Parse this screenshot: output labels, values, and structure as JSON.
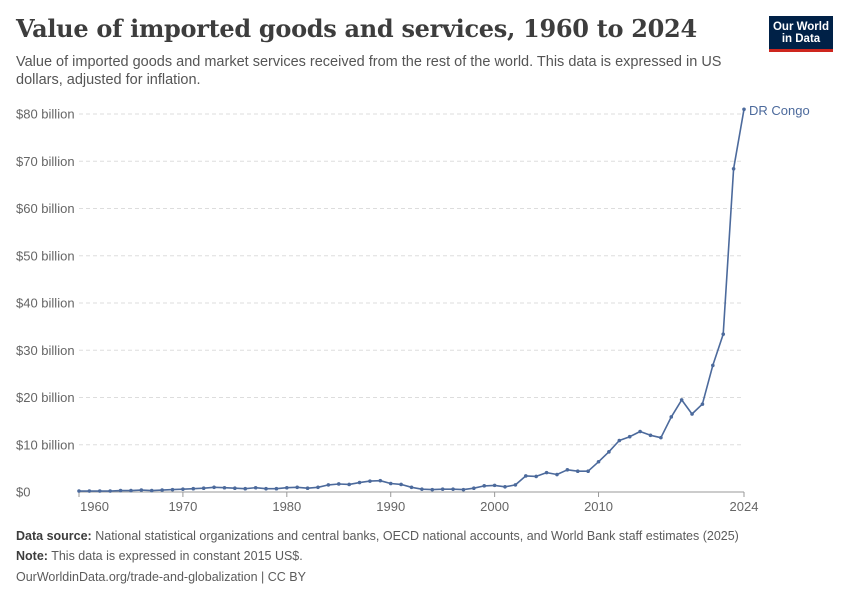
{
  "header": {
    "title": "Value of imported goods and services, 1960 to 2024",
    "subtitle": "Value of imported goods and market services received from the rest of the world. This data is expressed in US dollars, adjusted for inflation.",
    "logo_line1": "Our World",
    "logo_line2": "in Data"
  },
  "footer": {
    "source_label": "Data source:",
    "source_text": "National statistical organizations and central banks, OECD national accounts, and World Bank staff estimates (2025)",
    "note_label": "Note:",
    "note_text": "This data is expressed in constant 2015 US$.",
    "url_text": "OurWorldinData.org/trade-and-globalization | CC BY"
  },
  "colors": {
    "series": "#4c6a9c",
    "grid": "#dddddd",
    "axis_text": "#666666",
    "logo_bg": "#002147",
    "logo_accent": "#ce261e"
  },
  "chart_data": {
    "type": "line",
    "xlim": [
      1960,
      2024
    ],
    "ylim": [
      0,
      80
    ],
    "y_unit": "billion",
    "y_ticks": [
      0,
      10,
      20,
      30,
      40,
      50,
      60,
      70,
      80
    ],
    "y_tick_labels": [
      "$0",
      "$10 billion",
      "$20 billion",
      "$30 billion",
      "$40 billion",
      "$50 billion",
      "$60 billion",
      "$70 billion",
      "$80 billion"
    ],
    "x_ticks": [
      1960,
      1970,
      1980,
      1990,
      2000,
      2010,
      2024
    ],
    "x_tick_labels": [
      "1960",
      "1970",
      "1980",
      "1990",
      "2000",
      "2010",
      "2024"
    ],
    "grid": "horizontal dashed",
    "series": [
      {
        "name": "DR Congo",
        "x": [
          1960,
          1961,
          1962,
          1963,
          1964,
          1965,
          1966,
          1967,
          1968,
          1969,
          1970,
          1971,
          1972,
          1973,
          1974,
          1975,
          1976,
          1977,
          1978,
          1979,
          1980,
          1981,
          1982,
          1983,
          1984,
          1985,
          1986,
          1987,
          1988,
          1989,
          1990,
          1991,
          1992,
          1993,
          1994,
          1995,
          1996,
          1997,
          1998,
          1999,
          2000,
          2001,
          2002,
          2003,
          2004,
          2005,
          2006,
          2007,
          2008,
          2009,
          2010,
          2011,
          2012,
          2013,
          2014,
          2015,
          2016,
          2017,
          2018,
          2019,
          2020,
          2021,
          2022,
          2023,
          2024
        ],
        "values": [
          0.2,
          0.2,
          0.2,
          0.2,
          0.3,
          0.3,
          0.4,
          0.3,
          0.4,
          0.5,
          0.6,
          0.7,
          0.8,
          1.0,
          0.9,
          0.8,
          0.7,
          0.9,
          0.7,
          0.7,
          0.9,
          1.0,
          0.8,
          1.0,
          1.5,
          1.7,
          1.6,
          2.0,
          2.3,
          2.4,
          1.8,
          1.6,
          1.0,
          0.6,
          0.5,
          0.6,
          0.6,
          0.5,
          0.8,
          1.3,
          1.4,
          1.1,
          1.5,
          3.4,
          3.3,
          4.1,
          3.7,
          4.7,
          4.4,
          4.4,
          6.4,
          8.5,
          10.9,
          11.7,
          12.8,
          12.0,
          11.5,
          15.9,
          19.5,
          16.5,
          18.6,
          26.8,
          33.4,
          68.4,
          81.0
        ]
      }
    ]
  }
}
